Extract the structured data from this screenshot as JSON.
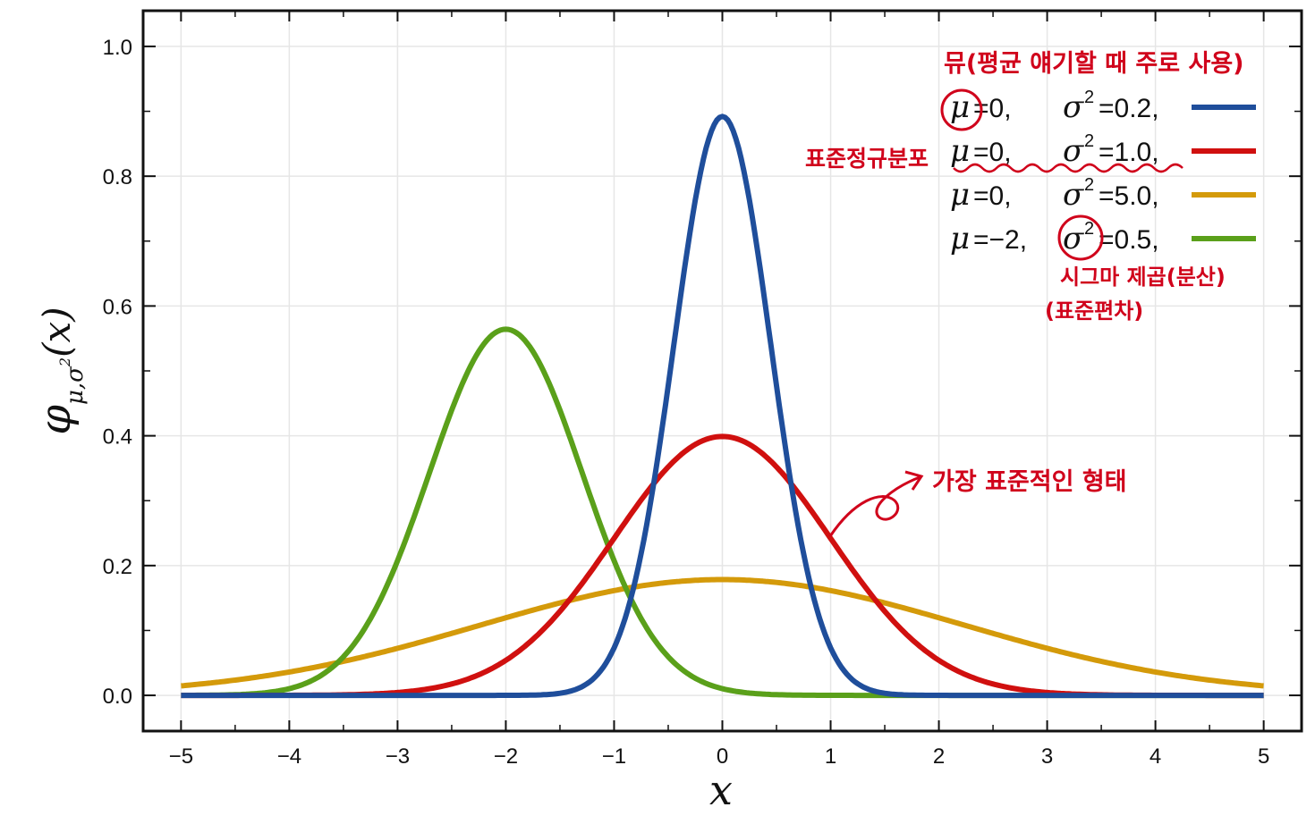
{
  "chart_data": {
    "type": "line",
    "xlabel": "x",
    "ylabel": "φμ,σ²(x)",
    "xlim": [
      -5.35,
      5.35
    ],
    "ylim": [
      -0.055,
      1.055
    ],
    "x_ticks": [
      "−5",
      "−4",
      "−3",
      "−2",
      "−1",
      "0",
      "1",
      "2",
      "3",
      "4",
      "5"
    ],
    "y_ticks": [
      "0.0",
      "0.2",
      "0.4",
      "0.6",
      "0.8",
      "1.0"
    ],
    "grid": true,
    "legend_position": "top-right",
    "series": [
      {
        "name": "μ=0, σ²=0.2,",
        "mu": 0,
        "sigma2": 0.2,
        "color": "#1f4e9b"
      },
      {
        "name": "μ=0, σ²=1.0,",
        "mu": 0,
        "sigma2": 1.0,
        "color": "#d0100f"
      },
      {
        "name": "μ=0, σ²=5.0,",
        "mu": 0,
        "sigma2": 5.0,
        "color": "#d49a0a"
      },
      {
        "name": "μ=−2, σ²=0.5,",
        "mu": -2,
        "sigma2": 0.5,
        "color": "#5aa01a"
      }
    ]
  },
  "legend": [
    {
      "mu_label": "μ",
      "mu_value": "=0,",
      "sigma_label": "σ",
      "sigma_exp": "2",
      "sigma_value": "=0.2,",
      "color": "#1f4e9b"
    },
    {
      "mu_label": "μ",
      "mu_value": "=0,",
      "sigma_label": "σ",
      "sigma_exp": "2",
      "sigma_value": "=1.0,",
      "color": "#d0100f"
    },
    {
      "mu_label": "μ",
      "mu_value": "=0,",
      "sigma_label": "σ",
      "sigma_exp": "2",
      "sigma_value": "=5.0,",
      "color": "#d49a0a"
    },
    {
      "mu_label": "μ",
      "mu_value": "=−2,",
      "sigma_label": "σ",
      "sigma_exp": "2",
      "sigma_value": "=0.5,",
      "color": "#5aa01a"
    }
  ],
  "axis_labels": {
    "x": "x",
    "y_main": "φ",
    "y_sub": "μ,σ",
    "y_sub_exp": "2",
    "y_arg": "(x)"
  },
  "annotations": {
    "mu_note": "뮤(평균 얘기할 때 주로 사용)",
    "standard_normal": "표준정규분포",
    "sigma_note_line1": "시그마 제곱(분산)",
    "sigma_note_line2": "(표준편차)",
    "most_standard": "가장 표준적인 형태"
  },
  "annotation_color": "#d0021b"
}
